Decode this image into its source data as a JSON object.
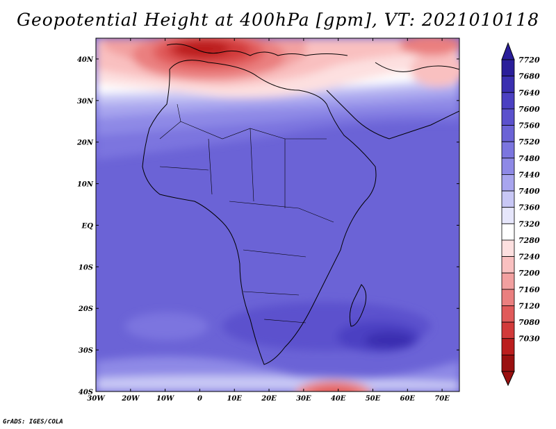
{
  "title": "Geopotential Height at 400hPa [gpm], VT: 2021010118",
  "credit": "GrADS: IGES/COLA",
  "map": {
    "lon_labels": [
      "30W",
      "20W",
      "10W",
      "0",
      "10E",
      "20E",
      "30E",
      "40E",
      "50E",
      "60E",
      "70E"
    ],
    "lat_labels": [
      "40N",
      "30N",
      "20N",
      "10N",
      "EQ",
      "10S",
      "20S",
      "30S",
      "40S"
    ],
    "lon_range": [
      -30,
      75
    ],
    "lat_range": [
      -40,
      45
    ]
  },
  "colorbar": {
    "levels": [
      "7720",
      "7680",
      "7640",
      "7600",
      "7560",
      "7520",
      "7480",
      "7440",
      "7400",
      "7360",
      "7320",
      "7280",
      "7240",
      "7200",
      "7160",
      "7120",
      "7080",
      "7030"
    ],
    "colors": [
      "#2a1e9a",
      "#3a2fb0",
      "#4b40c2",
      "#5b51cd",
      "#6b63d6",
      "#7b75df",
      "#8e89e6",
      "#a8a5ee",
      "#c8c7f5",
      "#e6e6fb",
      "#ffffff",
      "#fde0e0",
      "#f9c0c0",
      "#f2a0a0",
      "#ea7f7f",
      "#e05a5a",
      "#d23a3a",
      "#bb1e1e",
      "#9a1010"
    ],
    "top_arrow_color": "#2a1e9a",
    "bottom_arrow_color": "#9a1010"
  }
}
